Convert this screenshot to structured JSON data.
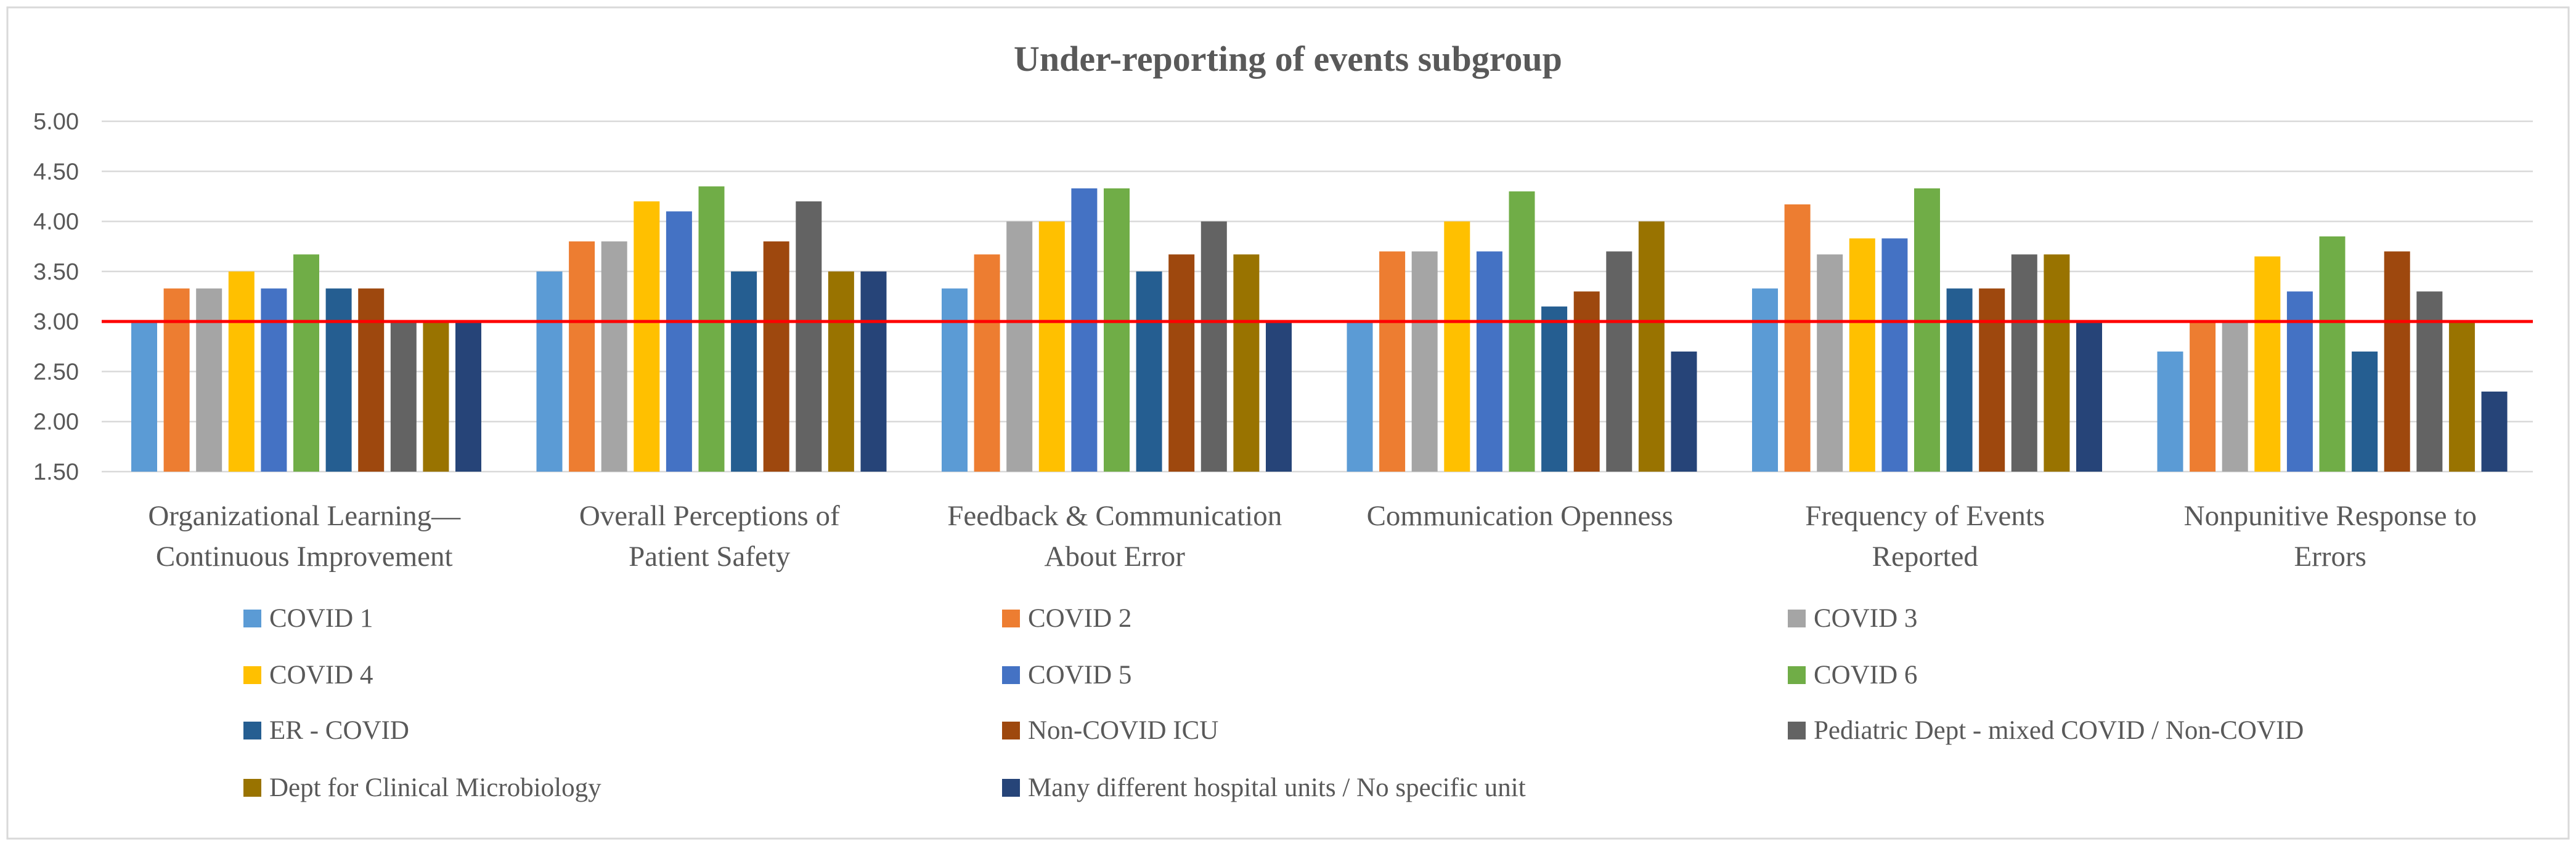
{
  "chart_data": {
    "type": "bar",
    "title": "Under-reporting  of events subgroup",
    "xlabel": "",
    "ylabel": "",
    "ylim": [
      1.5,
      5.0
    ],
    "ytick_step": 0.5,
    "ytick_labels": [
      "1.50",
      "2.00",
      "2.50",
      "3.00",
      "3.50",
      "4.00",
      "4.50",
      "5.00"
    ],
    "grid": true,
    "reference_line": {
      "value": 3.0,
      "color": "#ff0000"
    },
    "legend_position": "bottom",
    "categories": [
      [
        "Organizational Learning—",
        "Continuous Improvement"
      ],
      [
        "Overall Perceptions of",
        "Patient Safety"
      ],
      [
        "Feedback & Communication",
        "About Error"
      ],
      [
        "Communication Openness"
      ],
      [
        "Frequency of Events",
        "Reported"
      ],
      [
        "Nonpunitive Response to",
        "Errors"
      ]
    ],
    "series": [
      {
        "name": "COVID 1",
        "color": "#5b9bd5",
        "values": [
          3.0,
          3.5,
          3.33,
          3.0,
          3.33,
          2.7
        ]
      },
      {
        "name": "COVID 2",
        "color": "#ed7d31",
        "values": [
          3.33,
          3.8,
          3.67,
          3.7,
          4.17,
          3.0
        ]
      },
      {
        "name": "COVID 3",
        "color": "#a5a5a5",
        "values": [
          3.33,
          3.8,
          4.0,
          3.7,
          3.67,
          3.0
        ]
      },
      {
        "name": "COVID 4",
        "color": "#ffc000",
        "values": [
          3.5,
          4.2,
          4.0,
          4.0,
          3.83,
          3.65
        ]
      },
      {
        "name": "COVID 5",
        "color": "#4472c4",
        "values": [
          3.33,
          4.1,
          4.33,
          3.7,
          3.83,
          3.3
        ]
      },
      {
        "name": "COVID  6",
        "color": "#70ad47",
        "values": [
          3.67,
          4.35,
          4.33,
          4.3,
          4.33,
          3.85
        ]
      },
      {
        "name": "ER - COVID",
        "color": "#255e91",
        "values": [
          3.33,
          3.5,
          3.5,
          3.15,
          3.33,
          2.7
        ]
      },
      {
        "name": "Non-COVID ICU",
        "color": "#9e480e",
        "values": [
          3.33,
          3.8,
          3.67,
          3.3,
          3.33,
          3.7
        ]
      },
      {
        "name": "Pediatric Dept - mixed COVID / Non-COVID",
        "color": "#636363",
        "values": [
          3.0,
          4.2,
          4.0,
          3.7,
          3.67,
          3.3
        ]
      },
      {
        "name": "Dept for Clinical Microbiology",
        "color": "#997300",
        "values": [
          3.0,
          3.5,
          3.67,
          4.0,
          3.67,
          3.0
        ]
      },
      {
        "name": "Many different hospital units / No specific unit",
        "color": "#264478",
        "values": [
          3.0,
          3.5,
          3.0,
          2.7,
          3.0,
          2.3
        ]
      }
    ]
  }
}
